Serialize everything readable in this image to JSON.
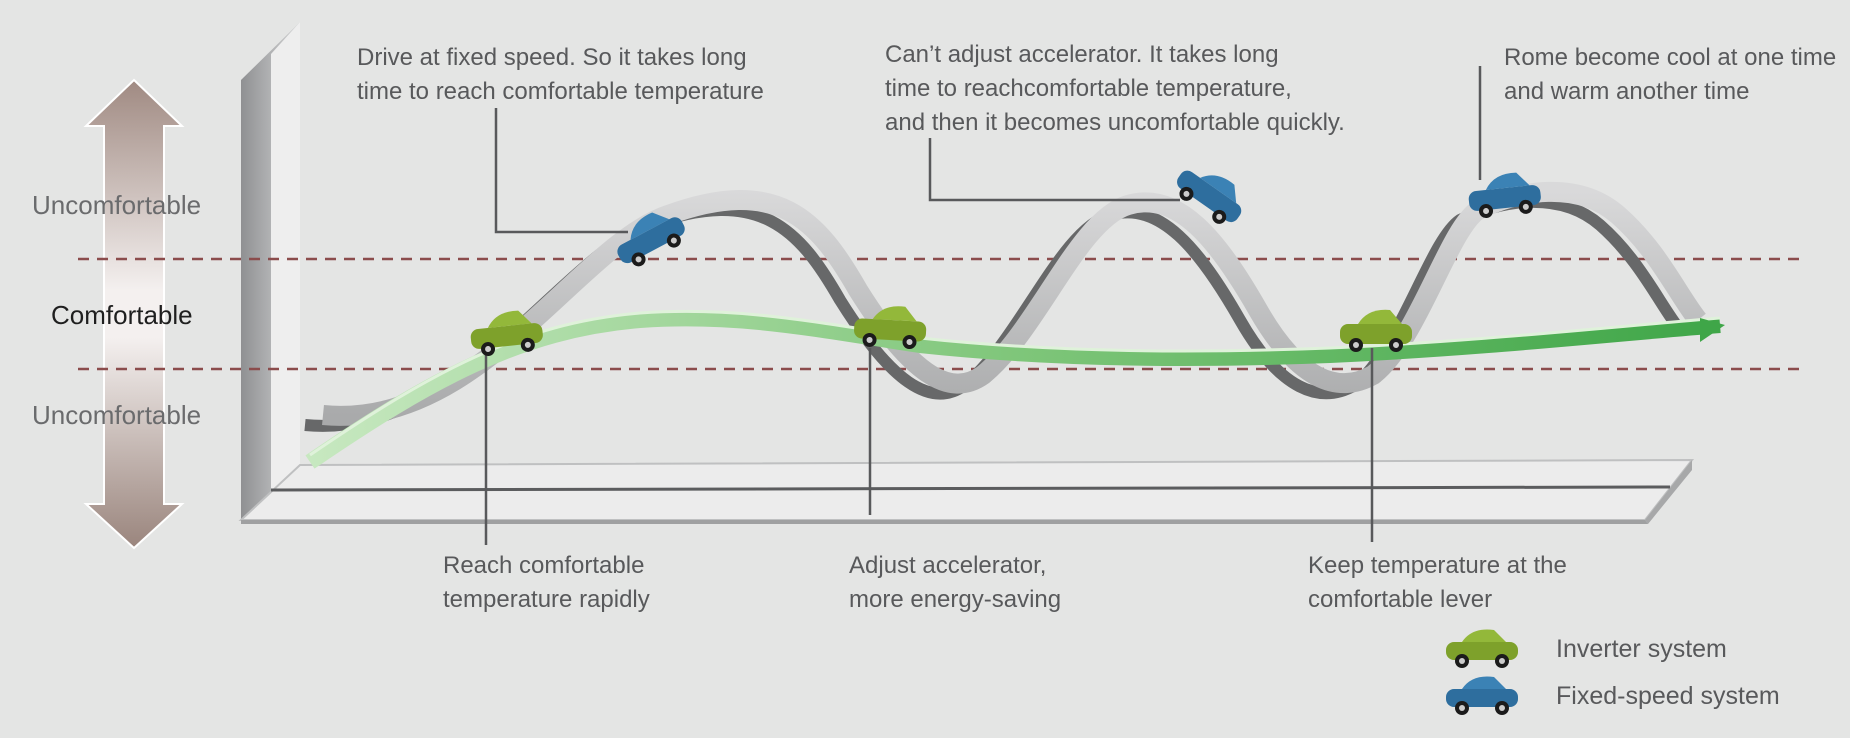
{
  "zones": {
    "upper": "Uncomfortable",
    "middle": "Comfortable",
    "lower": "Uncomfortable"
  },
  "annotations": {
    "fixed_speed_start": [
      "Drive at fixed speed. So it takes long",
      "time to reach comfortable temperature"
    ],
    "fixed_speed_middle": [
      "Can’t adjust accelerator. It takes long",
      "time to reachcomfortable temperature,",
      "and then it becomes uncomfortable quickly."
    ],
    "fixed_speed_end": [
      "Rome become cool at one time",
      "and warm another time"
    ],
    "inverter_start": [
      "Reach comfortable",
      "temperature rapidly"
    ],
    "inverter_middle": [
      "Adjust accelerator,",
      "more energy-saving"
    ],
    "inverter_end": [
      "Keep temperature at the",
      "comfortable lever"
    ]
  },
  "legend": [
    {
      "label": "Inverter system",
      "color": "#7ea12b"
    },
    {
      "label": "Fixed-speed system",
      "color": "#2e6e9e"
    }
  ],
  "colors": {
    "inverter": "#4aae4a",
    "fixed_speed_ribbon": "#b9b9b9",
    "comfort_band_line": "#8b4c4c",
    "arrow": "#a08a82"
  }
}
